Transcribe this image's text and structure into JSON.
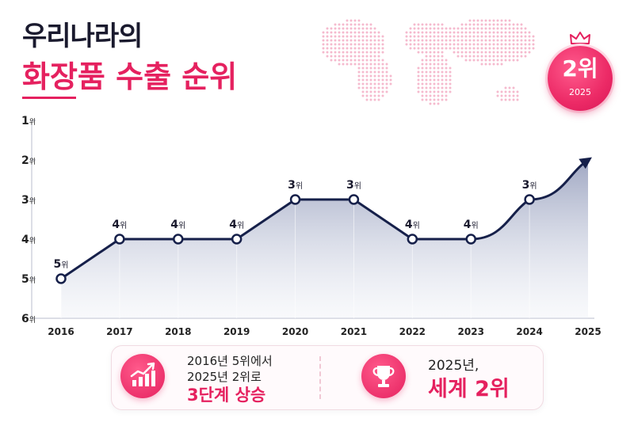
{
  "title": {
    "line1": "우리나라의",
    "line2": "화장품 수출 순위"
  },
  "badge": {
    "rank": "2위",
    "year": "2025"
  },
  "chart_data": {
    "type": "line",
    "x": [
      "2016",
      "2017",
      "2018",
      "2019",
      "2020",
      "2021",
      "2022",
      "2023",
      "2024",
      "2025"
    ],
    "y": [
      5,
      4,
      4,
      4,
      3,
      3,
      4,
      4,
      3,
      2
    ],
    "point_labels": [
      "5위",
      "4위",
      "4위",
      "4위",
      "3위",
      "3위",
      "4위",
      "4위",
      "3위",
      ""
    ],
    "y_ticks": [
      1,
      2,
      3,
      4,
      5,
      6
    ],
    "y_tick_labels": [
      "1위",
      "2위",
      "3위",
      "4위",
      "5위",
      "6위"
    ],
    "ylim": [
      1,
      6
    ],
    "y_inverted": true,
    "grid": false,
    "colors": {
      "line": "#16204a",
      "area": "#c9cee0",
      "accent": "#e5215f",
      "map_dots": "#f3a9c2"
    }
  },
  "summary": {
    "left_line1": "2016년 5위에서",
    "left_line2": "2025년 2위로",
    "left_highlight": "3단계 상승",
    "left_icon": "growth-chart-icon",
    "right_line1": "2025년,",
    "right_highlight": "세계 2위",
    "right_icon": "trophy-icon"
  }
}
